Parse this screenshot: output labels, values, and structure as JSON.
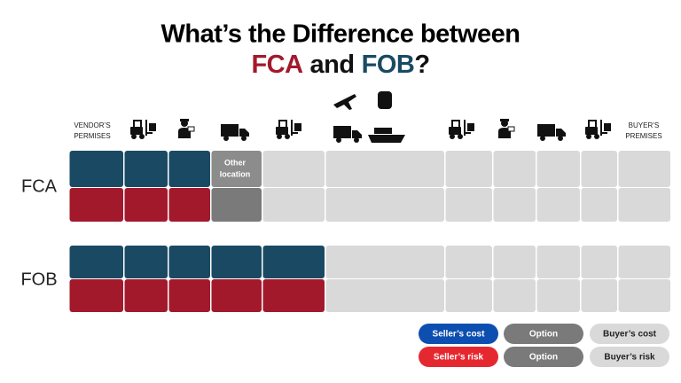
{
  "header": {
    "title_line1": "What’s the Difference between",
    "title_fca": "FCA",
    "title_and": "and",
    "title_fob": "FOB",
    "title_q": "?"
  },
  "columns": {
    "start": [
      "VENDOR’S",
      "PERMISES"
    ],
    "end": [
      "BUYER’S",
      "PREMISES"
    ]
  },
  "rows": {
    "fca": {
      "label": "FCA",
      "note": [
        "Other",
        "location"
      ]
    },
    "fob": {
      "label": "FOB"
    }
  },
  "legend": {
    "items": [
      {
        "label": "Seller’s cost",
        "color": "#0d4fb0"
      },
      {
        "label": "Option",
        "color": "#7a7a7a"
      },
      {
        "label": "Buyer’s cost",
        "color": "#d9d9d9"
      },
      {
        "label": "Seller’s risk",
        "color": "#e5282f"
      },
      {
        "label": "Option",
        "color": "#7a7a7a"
      },
      {
        "label": "Buyer’s risk",
        "color": "#d9d9d9"
      }
    ]
  }
}
